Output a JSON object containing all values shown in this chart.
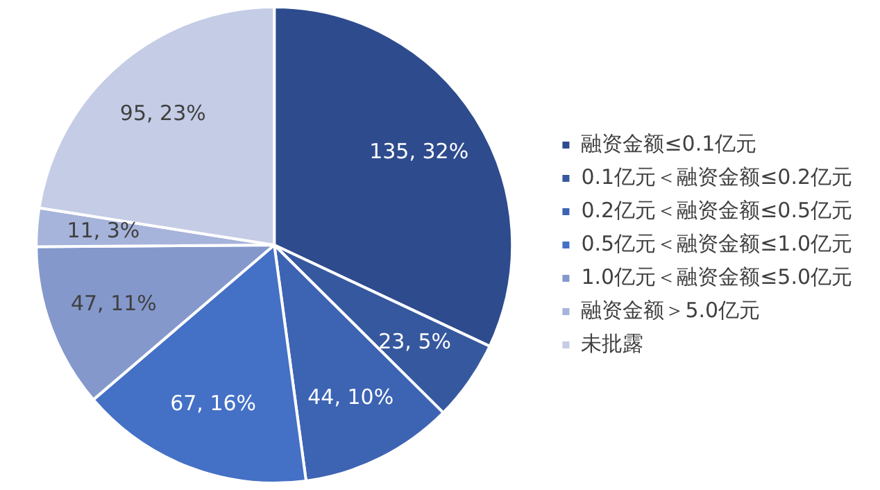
{
  "chart_data": {
    "type": "pie",
    "categories": [
      "融资金额≤0.1亿元",
      "0.1亿元＜融资金额≤0.2亿元",
      "0.2亿元＜融资金额≤0.5亿元",
      "0.5亿元＜融资金额≤1.0亿元",
      "1.0亿元＜融资金额≤5.0亿元",
      "融资金额＞5.0亿元",
      "未批露"
    ],
    "values": [
      135,
      23,
      44,
      67,
      47,
      11,
      95
    ],
    "colors": [
      "#2e4b8e",
      "#36589f",
      "#3d63b3",
      "#4470c6",
      "#8498cc",
      "#a6b3da",
      "#c5cce6"
    ],
    "value_labels": [
      "135, 32%",
      "23, 5%",
      "44, 10%",
      "67, 16%",
      "47, 11%",
      "11, 3%",
      "95, 23%"
    ],
    "legend": "right"
  }
}
